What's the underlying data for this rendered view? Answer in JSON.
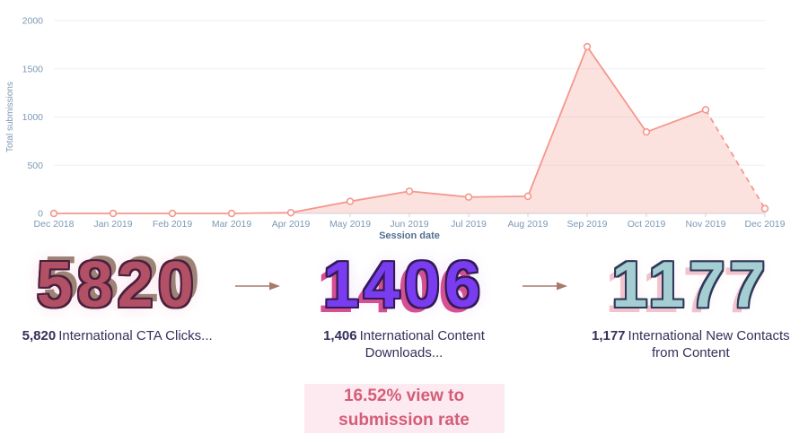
{
  "chart_data": {
    "type": "area",
    "title": "",
    "xlabel": "Session date",
    "ylabel": "Total submissions",
    "categories": [
      "Dec 2018",
      "Jan 2019",
      "Feb 2019",
      "Mar 2019",
      "Apr 2019",
      "May 2019",
      "Jun 2019",
      "Jul 2019",
      "Aug 2019",
      "Sep 2019",
      "Oct 2019",
      "Nov 2019",
      "Dec 2019"
    ],
    "values": [
      0,
      0,
      0,
      0,
      8,
      125,
      230,
      170,
      178,
      1730,
      845,
      1075,
      50
    ],
    "ylim": [
      0,
      2000
    ],
    "yticks": [
      0,
      500,
      1000,
      1500,
      2000
    ],
    "grid": "horizontal",
    "legend": "none",
    "last_segment_dashed": true,
    "line_color": "#f5978d",
    "fill_color": "rgba(245,151,141,0.28)",
    "marker_fill": "#ffffff",
    "grid_color": "#eaf0f6",
    "axis_color": "#cbd6e2",
    "tick_label_color": "#7c98b6",
    "axis_title_color": "#516f90"
  },
  "funnel": {
    "stages": [
      {
        "big": "5820",
        "value_formatted": "5,820",
        "label": "International CTA Clicks...",
        "accent": "#b25066"
      },
      {
        "big": "1406",
        "value_formatted": "1,406",
        "label": "International Content Downloads...",
        "accent": "#7a3cf0"
      },
      {
        "big": "1177",
        "value_formatted": "1,177",
        "label": "International New Contacts from Content",
        "accent": "#a5ced2"
      }
    ],
    "arrow_color": "#a87a6d"
  },
  "conversion": {
    "text": "16.52% view to submission rate",
    "color": "#d45d78",
    "highlight": "#fdeaf1"
  }
}
